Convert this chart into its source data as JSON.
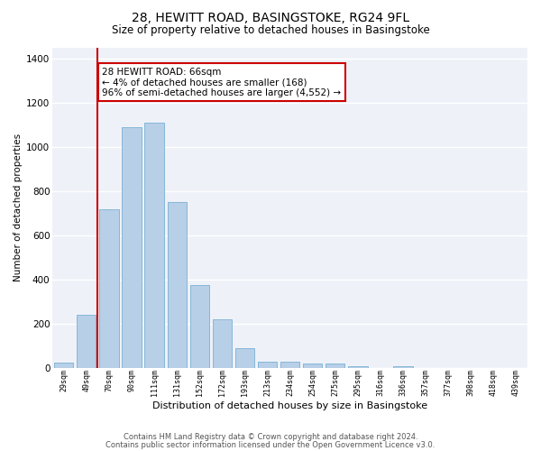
{
  "title1": "28, HEWITT ROAD, BASINGSTOKE, RG24 9FL",
  "title2": "Size of property relative to detached houses in Basingstoke",
  "xlabel": "Distribution of detached houses by size in Basingstoke",
  "ylabel": "Number of detached properties",
  "categories": [
    "29sqm",
    "49sqm",
    "70sqm",
    "90sqm",
    "111sqm",
    "131sqm",
    "152sqm",
    "172sqm",
    "193sqm",
    "213sqm",
    "234sqm",
    "254sqm",
    "275sqm",
    "295sqm",
    "316sqm",
    "336sqm",
    "357sqm",
    "377sqm",
    "398sqm",
    "418sqm",
    "439sqm"
  ],
  "values": [
    25,
    240,
    720,
    1090,
    1110,
    750,
    375,
    220,
    90,
    28,
    30,
    20,
    20,
    10,
    0,
    10,
    0,
    0,
    0,
    0,
    0
  ],
  "bar_color": "#b8cfe8",
  "bar_edge_color": "#7aafd4",
  "marker_line_color": "#cc0000",
  "annotation_text": "28 HEWITT ROAD: 66sqm\n← 4% of detached houses are smaller (168)\n96% of semi-detached houses are larger (4,552) →",
  "annotation_box_color": "#ffffff",
  "annotation_box_edge": "#cc0000",
  "footer1": "Contains HM Land Registry data © Crown copyright and database right 2024.",
  "footer2": "Contains public sector information licensed under the Open Government Licence v3.0.",
  "ylim": [
    0,
    1450
  ],
  "yticks": [
    0,
    200,
    400,
    600,
    800,
    1000,
    1200,
    1400
  ],
  "bg_color": "#eef2f8",
  "grid_color": "#ffffff",
  "title1_fontsize": 10,
  "title2_fontsize": 8.5
}
